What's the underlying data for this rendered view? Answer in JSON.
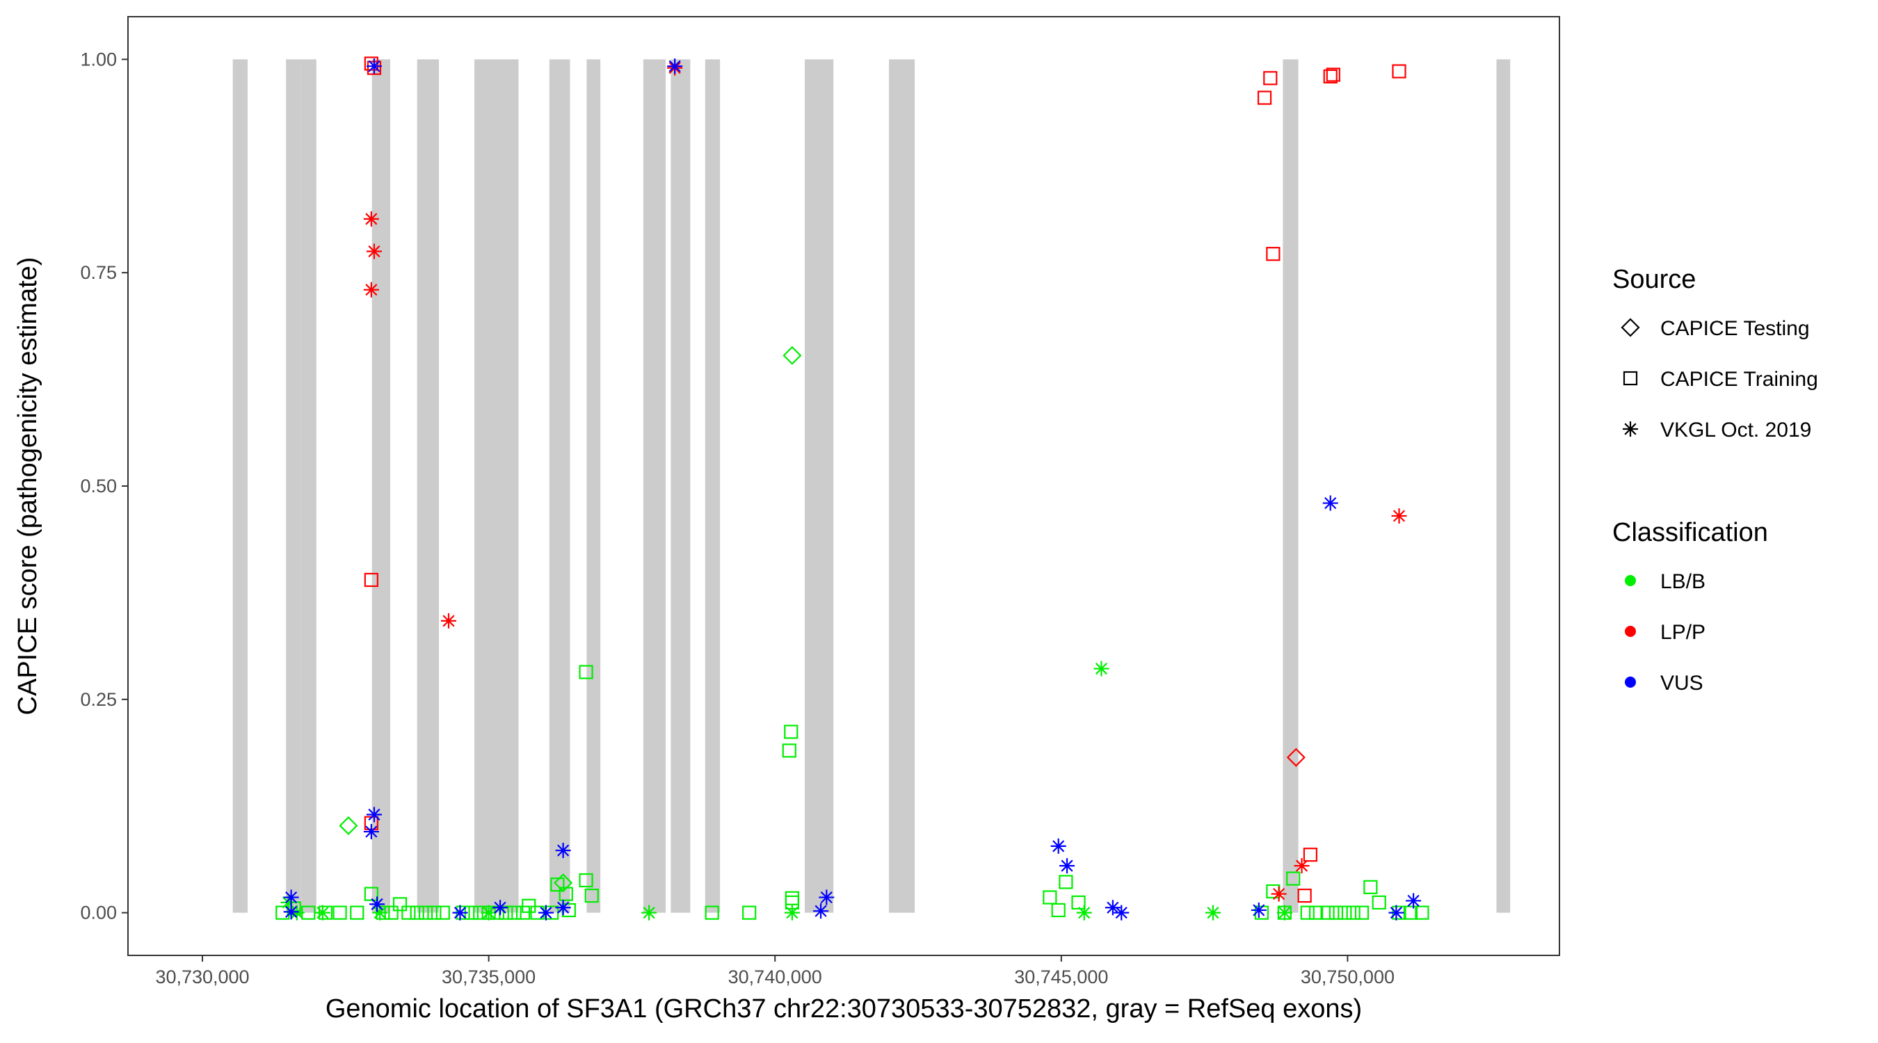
{
  "chart_data": {
    "type": "scatter",
    "title": "",
    "xlabel": "Genomic location of SF3A1 (GRCh37 chr22:30730533-30752832, gray = RefSeq exons)",
    "ylabel": "CAPICE score (pathogenicity estimate)",
    "xlim": [
      30728700,
      30753700
    ],
    "ylim": [
      -0.05,
      1.05
    ],
    "x_ticks": [
      30730000,
      30735000,
      30740000,
      30745000,
      30750000
    ],
    "x_tick_labels": [
      "30,730,000",
      "30,735,000",
      "30,740,000",
      "30,745,000",
      "30,750,000"
    ],
    "y_ticks": [
      0,
      0.25,
      0.5,
      0.75,
      1
    ],
    "y_tick_labels": [
      "0.00",
      "0.25",
      "0.50",
      "0.75",
      "1.00"
    ],
    "grid": false,
    "legend_placement": "right",
    "exons": [
      [
        30730530,
        30730790
      ],
      [
        30731460,
        30731720
      ],
      [
        30731720,
        30731990
      ],
      [
        30732960,
        30733280
      ],
      [
        30733750,
        30734130
      ],
      [
        30734750,
        30735520
      ],
      [
        30736060,
        30736420
      ],
      [
        30736710,
        30736950
      ],
      [
        30737700,
        30738090
      ],
      [
        30738180,
        30738520
      ],
      [
        30738780,
        30739040
      ],
      [
        30740520,
        30741020
      ],
      [
        30741990,
        30742440
      ],
      [
        30748870,
        30749140
      ],
      [
        30752600,
        30752840
      ]
    ],
    "exon_color": "#cccccc",
    "legends": {
      "source": {
        "title": "Source",
        "entries": [
          {
            "label": "CAPICE Testing",
            "shape": "diamond"
          },
          {
            "label": "CAPICE Training",
            "shape": "square"
          },
          {
            "label": "VKGL Oct. 2019",
            "shape": "asterisk"
          }
        ]
      },
      "classification": {
        "title": "Classification",
        "entries": [
          {
            "label": "LB/B",
            "color": "#00ee00"
          },
          {
            "label": "LP/P",
            "color": "#ff0000"
          },
          {
            "label": "VUS",
            "color": "#0000ff"
          }
        ]
      }
    },
    "series": [
      {
        "source": "CAPICE Training",
        "classification": "LB/B",
        "points": [
          [
            30731400,
            0.0
          ],
          [
            30731600,
            0.005
          ],
          [
            30731850,
            0.0
          ],
          [
            30732150,
            0.0
          ],
          [
            30732400,
            0.0
          ],
          [
            30732700,
            0.0
          ],
          [
            30732950,
            0.022
          ],
          [
            30733150,
            0.0
          ],
          [
            30733300,
            0.0
          ],
          [
            30733450,
            0.01
          ],
          [
            30733600,
            0.0
          ],
          [
            30733750,
            0.0
          ],
          [
            30733900,
            0.0
          ],
          [
            30734050,
            0.0
          ],
          [
            30734200,
            0.0
          ],
          [
            30734550,
            0.0
          ],
          [
            30734700,
            0.0
          ],
          [
            30734850,
            0.0
          ],
          [
            30735000,
            0.0
          ],
          [
            30735150,
            0.0
          ],
          [
            30735300,
            0.0
          ],
          [
            30735450,
            0.0
          ],
          [
            30735600,
            0.0
          ],
          [
            30735700,
            0.008
          ],
          [
            30735850,
            0.0
          ],
          [
            30736100,
            0.0
          ],
          [
            30736200,
            0.033
          ],
          [
            30736350,
            0.022
          ],
          [
            30736400,
            0.003
          ],
          [
            30736700,
            0.038
          ],
          [
            30736800,
            0.02
          ],
          [
            30736700,
            0.282
          ],
          [
            30738900,
            0.0
          ],
          [
            30739550,
            0.0
          ],
          [
            30740250,
            0.19
          ],
          [
            30740280,
            0.212
          ],
          [
            30740300,
            0.017
          ],
          [
            30740300,
            0.012
          ],
          [
            30744800,
            0.018
          ],
          [
            30744950,
            0.003
          ],
          [
            30745080,
            0.036
          ],
          [
            30745300,
            0.012
          ],
          [
            30748500,
            0.0
          ],
          [
            30748700,
            0.025
          ],
          [
            30748900,
            0.0
          ],
          [
            30749050,
            0.04
          ],
          [
            30749300,
            0.0
          ],
          [
            30749450,
            0.0
          ],
          [
            30749650,
            0.0
          ],
          [
            30749800,
            0.0
          ],
          [
            30749950,
            0.0
          ],
          [
            30750100,
            0.0
          ],
          [
            30750250,
            0.0
          ],
          [
            30750400,
            0.03
          ],
          [
            30750550,
            0.012
          ],
          [
            30750900,
            0.0
          ],
          [
            30751100,
            0.0
          ],
          [
            30751300,
            0.0
          ]
        ]
      },
      {
        "source": "CAPICE Training",
        "classification": "LP/P",
        "points": [
          [
            30732950,
            0.995
          ],
          [
            30733000,
            0.99
          ],
          [
            30732950,
            0.39
          ],
          [
            30732950,
            0.105
          ],
          [
            30748550,
            0.955
          ],
          [
            30748650,
            0.978
          ],
          [
            30748700,
            0.772
          ],
          [
            30749700,
            0.98
          ],
          [
            30749750,
            0.982
          ],
          [
            30750900,
            0.986
          ],
          [
            30749350,
            0.068
          ],
          [
            30749250,
            0.02
          ]
        ]
      },
      {
        "source": "CAPICE Testing",
        "classification": "LB/B",
        "points": [
          [
            30732550,
            0.102
          ],
          [
            30736300,
            0.035
          ],
          [
            30740300,
            0.653
          ]
        ]
      },
      {
        "source": "CAPICE Testing",
        "classification": "LP/P",
        "points": [
          [
            30749100,
            0.182
          ]
        ]
      },
      {
        "source": "VKGL Oct. 2019",
        "classification": "LB/B",
        "points": [
          [
            30731500,
            0.012
          ],
          [
            30731650,
            0.0
          ],
          [
            30732100,
            0.0
          ],
          [
            30733100,
            0.0
          ],
          [
            30735000,
            0.0
          ],
          [
            30737800,
            0.0
          ],
          [
            30740300,
            0.0
          ],
          [
            30745400,
            0.0
          ],
          [
            30745700,
            0.286
          ],
          [
            30747650,
            0.0
          ],
          [
            30748900,
            0.0
          ]
        ]
      },
      {
        "source": "VKGL Oct. 2019",
        "classification": "LP/P",
        "points": [
          [
            30732950,
            0.813
          ],
          [
            30733000,
            0.775
          ],
          [
            30732950,
            0.73
          ],
          [
            30734300,
            0.342
          ],
          [
            30738250,
            0.99
          ],
          [
            30748800,
            0.022
          ],
          [
            30749200,
            0.055
          ],
          [
            30750900,
            0.465
          ]
        ]
      },
      {
        "source": "VKGL Oct. 2019",
        "classification": "VUS",
        "points": [
          [
            30731550,
            0.018
          ],
          [
            30731550,
            0.001
          ],
          [
            30732950,
            0.095
          ],
          [
            30733000,
            0.115
          ],
          [
            30733050,
            0.01
          ],
          [
            30733000,
            0.992
          ],
          [
            30734500,
            0.0
          ],
          [
            30735200,
            0.006
          ],
          [
            30736000,
            0.0
          ],
          [
            30736300,
            0.073
          ],
          [
            30736300,
            0.006
          ],
          [
            30738250,
            0.992
          ],
          [
            30740800,
            0.002
          ],
          [
            30740900,
            0.018
          ],
          [
            30744950,
            0.078
          ],
          [
            30745100,
            0.055
          ],
          [
            30745900,
            0.006
          ],
          [
            30746050,
            0.0
          ],
          [
            30748450,
            0.003
          ],
          [
            30749700,
            0.48
          ],
          [
            30750850,
            0.0
          ],
          [
            30751150,
            0.014
          ]
        ]
      }
    ]
  }
}
